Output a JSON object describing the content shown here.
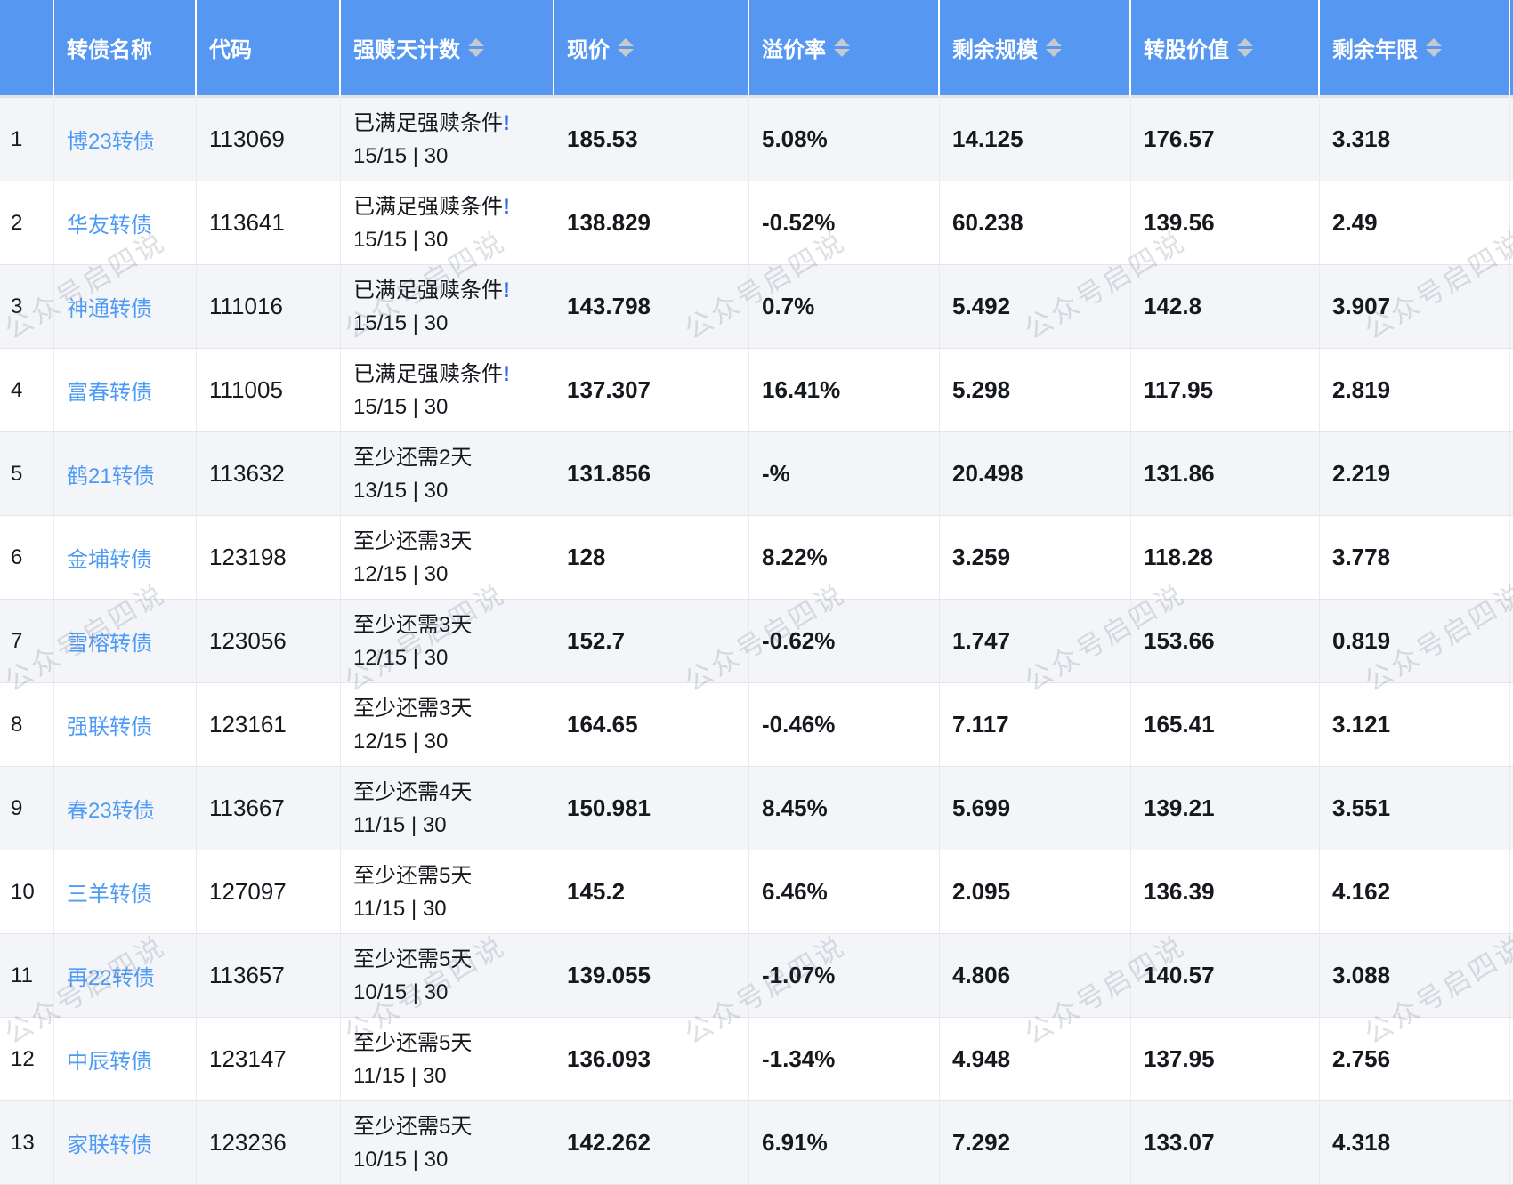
{
  "watermark": "公众号启四说",
  "colors": {
    "header_bg": "#5697f1",
    "link_blue": "#4e9bf5",
    "alert_blue": "#2e6ae6",
    "row_alt_bg": "#f3f5f8",
    "sort_icon": "#c6c9cd"
  },
  "table": {
    "columns": [
      {
        "key": "index",
        "label": "",
        "sortable": false
      },
      {
        "key": "name",
        "label": "转债名称",
        "sortable": false
      },
      {
        "key": "code",
        "label": "代码",
        "sortable": false
      },
      {
        "key": "redeem",
        "label": "强赎天计数",
        "sortable": true
      },
      {
        "key": "price",
        "label": "现价",
        "sortable": true
      },
      {
        "key": "premium",
        "label": "溢价率",
        "sortable": true
      },
      {
        "key": "size",
        "label": "剩余规模",
        "sortable": true
      },
      {
        "key": "value",
        "label": "转股价值",
        "sortable": true
      },
      {
        "key": "years",
        "label": "剩余年限",
        "sortable": true
      }
    ],
    "rows": [
      {
        "index": "1",
        "name": "博23转债",
        "code": "113069",
        "redeem_line1": "已满足强赎条件",
        "redeem_alert": "!",
        "redeem_line2": "15/15 | 30",
        "price": "185.53",
        "premium": "5.08%",
        "size": "14.125",
        "value": "176.57",
        "years": "3.318"
      },
      {
        "index": "2",
        "name": "华友转债",
        "code": "113641",
        "redeem_line1": "已满足强赎条件",
        "redeem_alert": "!",
        "redeem_line2": "15/15 | 30",
        "price": "138.829",
        "premium": "-0.52%",
        "size": "60.238",
        "value": "139.56",
        "years": "2.49"
      },
      {
        "index": "3",
        "name": "神通转债",
        "code": "111016",
        "redeem_line1": "已满足强赎条件",
        "redeem_alert": "!",
        "redeem_line2": "15/15 | 30",
        "price": "143.798",
        "premium": "0.7%",
        "size": "5.492",
        "value": "142.8",
        "years": "3.907"
      },
      {
        "index": "4",
        "name": "富春转债",
        "code": "111005",
        "redeem_line1": "已满足强赎条件",
        "redeem_alert": "!",
        "redeem_line2": "15/15 | 30",
        "price": "137.307",
        "premium": "16.41%",
        "size": "5.298",
        "value": "117.95",
        "years": "2.819"
      },
      {
        "index": "5",
        "name": "鹤21转债",
        "code": "113632",
        "redeem_line1": "至少还需2天",
        "redeem_alert": "",
        "redeem_line2": "13/15 | 30",
        "price": "131.856",
        "premium": "-%",
        "size": "20.498",
        "value": "131.86",
        "years": "2.219"
      },
      {
        "index": "6",
        "name": "金埔转债",
        "code": "123198",
        "redeem_line1": "至少还需3天",
        "redeem_alert": "",
        "redeem_line2": "12/15 | 30",
        "price": "128",
        "premium": "8.22%",
        "size": "3.259",
        "value": "118.28",
        "years": "3.778"
      },
      {
        "index": "7",
        "name": "雪榕转债",
        "code": "123056",
        "redeem_line1": "至少还需3天",
        "redeem_alert": "",
        "redeem_line2": "12/15 | 30",
        "price": "152.7",
        "premium": "-0.62%",
        "size": "1.747",
        "value": "153.66",
        "years": "0.819"
      },
      {
        "index": "8",
        "name": "强联转债",
        "code": "123161",
        "redeem_line1": "至少还需3天",
        "redeem_alert": "",
        "redeem_line2": "12/15 | 30",
        "price": "164.65",
        "premium": "-0.46%",
        "size": "7.117",
        "value": "165.41",
        "years": "3.121"
      },
      {
        "index": "9",
        "name": "春23转债",
        "code": "113667",
        "redeem_line1": "至少还需4天",
        "redeem_alert": "",
        "redeem_line2": "11/15 | 30",
        "price": "150.981",
        "premium": "8.45%",
        "size": "5.699",
        "value": "139.21",
        "years": "3.551"
      },
      {
        "index": "10",
        "name": "三羊转债",
        "code": "127097",
        "redeem_line1": "至少还需5天",
        "redeem_alert": "",
        "redeem_line2": "11/15 | 30",
        "price": "145.2",
        "premium": "6.46%",
        "size": "2.095",
        "value": "136.39",
        "years": "4.162"
      },
      {
        "index": "11",
        "name": "再22转债",
        "code": "113657",
        "redeem_line1": "至少还需5天",
        "redeem_alert": "",
        "redeem_line2": "10/15 | 30",
        "price": "139.055",
        "premium": "-1.07%",
        "size": "4.806",
        "value": "140.57",
        "years": "3.088"
      },
      {
        "index": "12",
        "name": "中辰转债",
        "code": "123147",
        "redeem_line1": "至少还需5天",
        "redeem_alert": "",
        "redeem_line2": "11/15 | 30",
        "price": "136.093",
        "premium": "-1.34%",
        "size": "4.948",
        "value": "137.95",
        "years": "2.756"
      },
      {
        "index": "13",
        "name": "家联转债",
        "code": "123236",
        "redeem_line1": "至少还需5天",
        "redeem_alert": "",
        "redeem_line2": "10/15 | 30",
        "price": "142.262",
        "premium": "6.91%",
        "size": "7.292",
        "value": "133.07",
        "years": "4.318"
      }
    ]
  }
}
